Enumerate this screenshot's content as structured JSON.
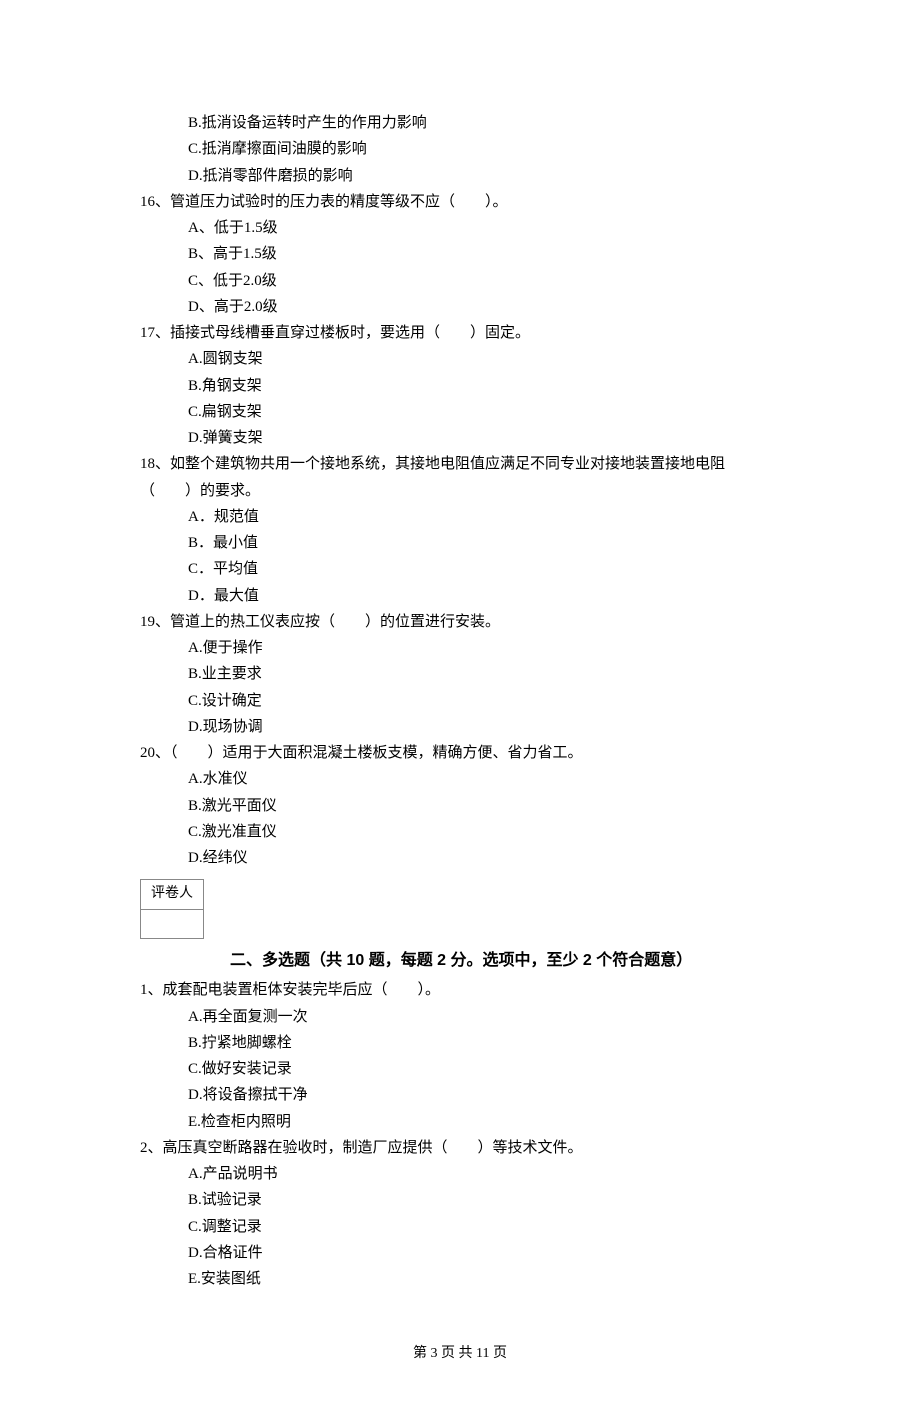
{
  "orphan_options": {
    "items": [
      "B.抵消设备运转时产生的作用力影响",
      "C.抵消摩擦面间油膜的影响",
      "D.抵消零部件磨损的影响"
    ]
  },
  "q16": {
    "stem": "16、管道压力试验时的压力表的精度等级不应（　　）。",
    "opts": [
      "A、低于1.5级",
      "B、高于1.5级",
      "C、低于2.0级",
      "D、高于2.0级"
    ]
  },
  "q17": {
    "stem": "17、插接式母线槽垂直穿过楼板时，要选用（　　）固定。",
    "opts": [
      "A.圆钢支架",
      "B.角钢支架",
      "C.扁钢支架",
      "D.弹簧支架"
    ]
  },
  "q18": {
    "line1": "18、如整个建筑物共用一个接地系统，其接地电阻值应满足不同专业对接地装置接地电阻",
    "line2": "（　　）的要求。",
    "opts": [
      "A．规范值",
      "B．最小值",
      "C．平均值",
      "D．最大值"
    ]
  },
  "q19": {
    "stem": "19、管道上的热工仪表应按（　　）的位置进行安装。",
    "opts": [
      "A.便于操作",
      "B.业主要求",
      "C.设计确定",
      "D.现场协调"
    ]
  },
  "q20": {
    "stem": "20、（　　）适用于大面积混凝土楼板支模，精确方便、省力省工。",
    "opts": [
      "A.水准仪",
      "B.激光平面仪",
      "C.激光准直仪",
      "D.经纬仪"
    ]
  },
  "grader_label": "评卷人",
  "section2_title": "二、多选题（共 10 题，每题 2 分。选项中，至少 2 个符合题意）",
  "mq1": {
    "stem": "1、成套配电装置柜体安装完毕后应（　　）。",
    "opts": [
      "A.再全面复测一次",
      "B.拧紧地脚螺栓",
      "C.做好安装记录",
      "D.将设备擦拭干净",
      "E.检查柜内照明"
    ]
  },
  "mq2": {
    "stem": "2、高压真空断路器在验收时，制造厂应提供（　　）等技术文件。",
    "opts": [
      "A.产品说明书",
      "B.试验记录",
      "C.调整记录",
      "D.合格证件",
      "E.安装图纸"
    ]
  },
  "footer": "第 3 页 共 11 页"
}
